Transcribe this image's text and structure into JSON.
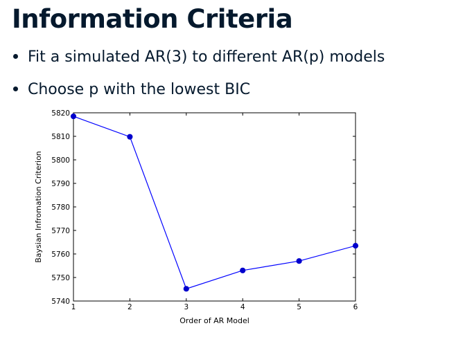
{
  "slide": {
    "title": "Information Criteria",
    "bullets": [
      "Fit a simulated AR(3) to different AR(p) models",
      "Choose p with the lowest BIC"
    ]
  },
  "chart_data": {
    "type": "line",
    "title": "",
    "xlabel": "Order of AR Model",
    "ylabel": "Baysian Infromation Criterion",
    "x": [
      1,
      2,
      3,
      4,
      5,
      6
    ],
    "series": [
      {
        "values": [
          5818.5,
          5809.8,
          5745.2,
          5753.0,
          5757.0,
          5763.5
        ]
      }
    ],
    "xlim": [
      1,
      6
    ],
    "ylim": [
      5740,
      5820
    ],
    "xticks": [
      "1",
      "2",
      "3",
      "4",
      "5",
      "6"
    ],
    "yticks": [
      "5740",
      "5750",
      "5760",
      "5770",
      "5780",
      "5790",
      "5800",
      "5810",
      "5820"
    ],
    "grid": false,
    "line_color": "#0000ff",
    "marker_color": "#0000cc"
  }
}
